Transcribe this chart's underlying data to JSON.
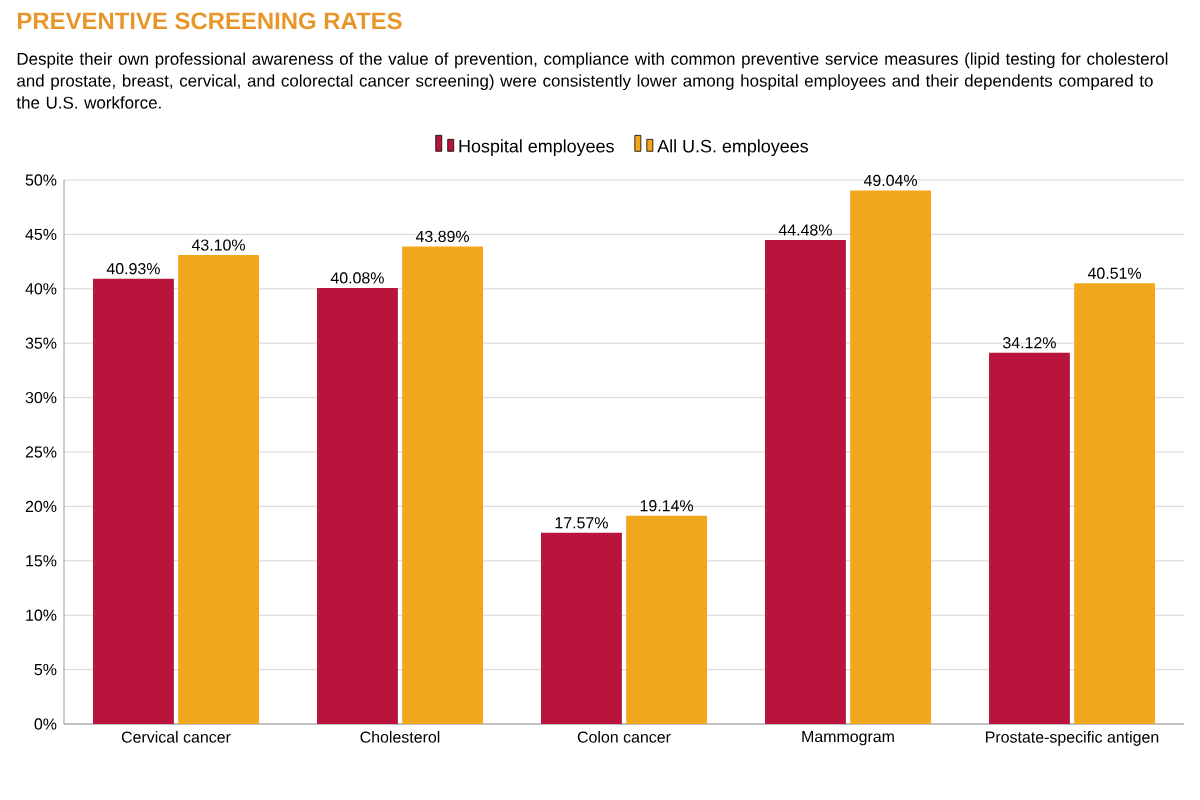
{
  "chart_data": {
    "type": "bar",
    "title": "PREVENTIVE SCREENING RATES",
    "subtitle": "Despite their own professional awareness of the value of prevention, compliance with common preventive service measures (lipid testing for cholesterol and prostate, breast, cervical, and colorectal cancer screening) were consistently lower among hospital employees and their dependents compared to the U.S. workforce.",
    "categories": [
      "Cervical cancer",
      "Cholesterol",
      "Colon cancer",
      "Mammogram",
      "Prostate-specific antigen"
    ],
    "series": [
      {
        "name": "Hospital employees",
        "color": "#b8143c",
        "values": [
          40.93,
          40.08,
          17.57,
          44.48,
          34.12
        ],
        "value_labels": [
          "40.93%",
          "40.08%",
          "17.57%",
          "44.48%",
          "34.12%"
        ]
      },
      {
        "name": "All U.S. employees",
        "color": "#f2a81d",
        "values": [
          43.1,
          43.89,
          19.14,
          49.04,
          40.51
        ],
        "value_labels": [
          "43.10%",
          "43.89%",
          "19.14%",
          "49.04%",
          "40.51%"
        ]
      }
    ],
    "ylim": [
      0,
      50
    ],
    "yticks": [
      {
        "value": 0,
        "label": "0%"
      },
      {
        "value": 5,
        "label": "5%"
      },
      {
        "value": 10,
        "label": "10%"
      },
      {
        "value": 15,
        "label": "15%"
      },
      {
        "value": 20,
        "label": "20%"
      },
      {
        "value": 25,
        "label": "25%"
      },
      {
        "value": 30,
        "label": "30%"
      },
      {
        "value": 35,
        "label": "35%"
      },
      {
        "value": 40,
        "label": "40%"
      },
      {
        "value": 45,
        "label": "45%"
      },
      {
        "value": 50,
        "label": "50%"
      }
    ],
    "grid": "y",
    "legend": "top"
  }
}
